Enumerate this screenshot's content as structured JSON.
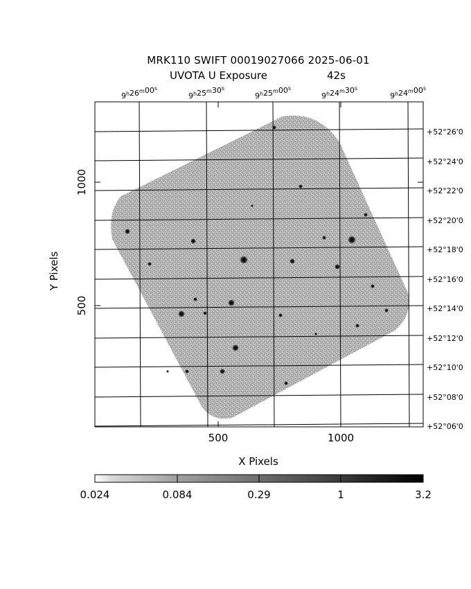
{
  "title": {
    "line1": "MRK110 SWIFT 00019027066 2025-06-01",
    "line2": "UVOTA U Exposure",
    "exposure": "42s"
  },
  "axes": {
    "xlabel": "X Pixels",
    "ylabel": "Y Pixels",
    "x_ticks": [
      "500",
      "1000"
    ],
    "y_ticks": [
      "500",
      "1000"
    ]
  },
  "ra_labels": [
    "9h26m00s",
    "9h25m30s",
    "9h25m00s",
    "9h24m30s",
    "9h24m00s"
  ],
  "ra_parts": [
    {
      "h": "9",
      "m": "26",
      "s": "00"
    },
    {
      "h": "9",
      "m": "25",
      "s": "30"
    },
    {
      "h": "9",
      "m": "25",
      "s": "00"
    },
    {
      "h": "9",
      "m": "24",
      "s": "30"
    },
    {
      "h": "9",
      "m": "24",
      "s": "00"
    }
  ],
  "dec_labels": [
    "+52°26'0",
    "+52°24'0",
    "+52°22'0",
    "+52°20'0",
    "+52°18'0",
    "+52°16'0",
    "+52°14'0",
    "+52°12'0",
    "+52°10'0",
    "+52°08'0",
    "+52°06'0"
  ],
  "colorbar": {
    "ticks": [
      "0.024",
      "0.084",
      "0.29",
      "1",
      "3.2"
    ],
    "scale": "log"
  }
}
